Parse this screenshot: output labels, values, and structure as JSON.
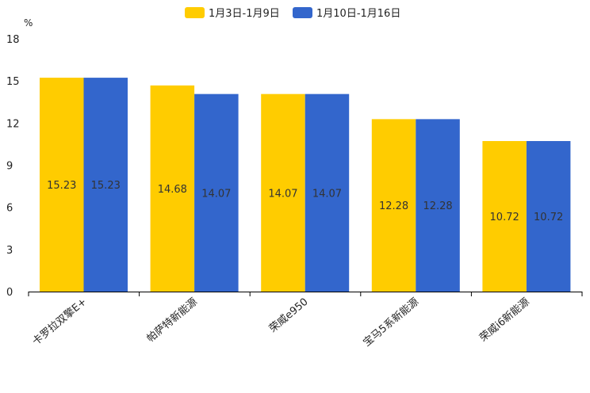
{
  "chart_data": {
    "type": "bar",
    "unit": "%",
    "categories": [
      "卡罗拉双擎E+",
      "帕萨特新能源",
      "荣威e950",
      "宝马5系新能源",
      "荣威i6新能源"
    ],
    "series": [
      {
        "name": "1月3日-1月9日",
        "color": "#FFCC00",
        "values": [
          15.23,
          14.68,
          14.07,
          12.28,
          10.72
        ]
      },
      {
        "name": "1月10日-1月16日",
        "color": "#3366CC",
        "values": [
          15.23,
          14.07,
          14.07,
          12.28,
          10.72
        ]
      }
    ],
    "value_labels": [
      [
        "15.23",
        "14.68",
        "14.07",
        "12.28",
        "10.72"
      ],
      [
        "15.23",
        "14.07",
        "14.07",
        "12.28",
        "10.72"
      ]
    ],
    "ylim": [
      0,
      18
    ],
    "yticks": [
      0,
      3,
      6,
      9,
      12,
      15,
      18
    ],
    "ytick_labels": [
      "0",
      "3",
      "6",
      "9",
      "12",
      "15",
      "18"
    ],
    "legend_position": "top-center",
    "grid": false
  }
}
